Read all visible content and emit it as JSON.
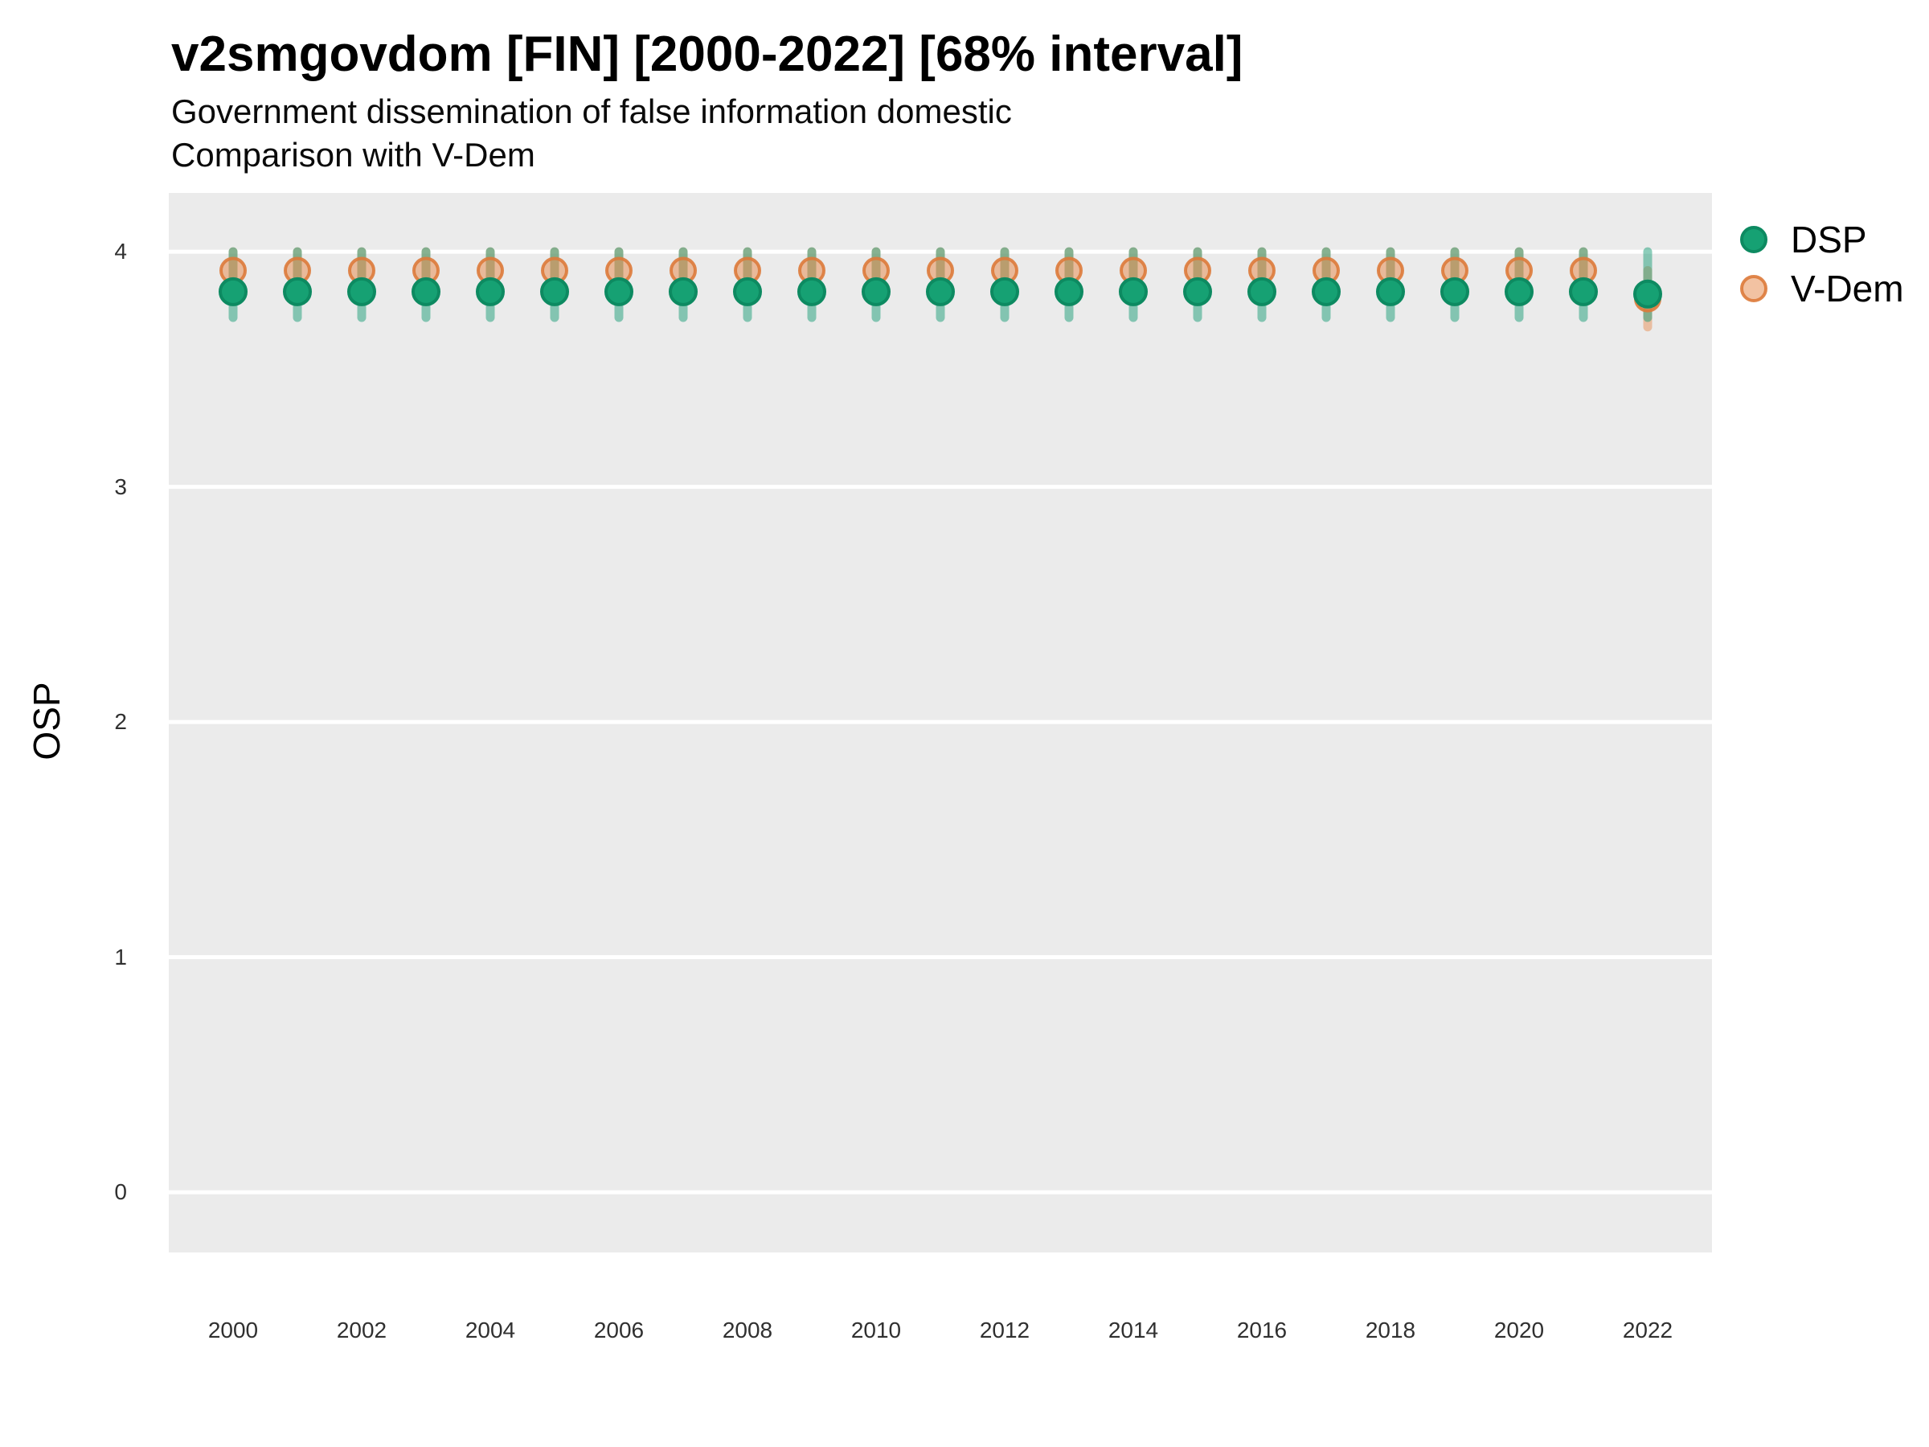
{
  "header": {
    "title": "v2smgovdom [FIN] [2000-2022] [68% interval]",
    "subtitle_line1": "Government dissemination of false information domestic",
    "subtitle_line2": "Comparison with V-Dem"
  },
  "legend": {
    "items": [
      {
        "label": "DSP",
        "marker_fill": "#16a173",
        "marker_stroke": "#0d8a61"
      },
      {
        "label": "V-Dem",
        "marker_fill": "rgba(232,144,86,0.55)",
        "marker_stroke": "rgba(221,122,58,0.9)"
      }
    ]
  },
  "chart_data": {
    "type": "scatter",
    "title": "v2smgovdom [FIN] [2000-2022] [68% interval]",
    "subtitle": "Government dissemination of false information domestic / Comparison with V-Dem",
    "xlabel": "",
    "ylabel": "OSP",
    "x": [
      2000,
      2001,
      2002,
      2003,
      2004,
      2005,
      2006,
      2007,
      2008,
      2009,
      2010,
      2011,
      2012,
      2013,
      2014,
      2015,
      2016,
      2017,
      2018,
      2019,
      2020,
      2021,
      2022
    ],
    "series": [
      {
        "name": "V-Dem",
        "point_fill": "rgba(232,144,86,0.55)",
        "point_stroke": "rgba(221,122,58,0.9)",
        "bar_color": "rgba(232,144,86,0.5)",
        "point_radius": 15,
        "values": [
          3.92,
          3.92,
          3.92,
          3.92,
          3.92,
          3.92,
          3.92,
          3.92,
          3.92,
          3.92,
          3.92,
          3.92,
          3.92,
          3.92,
          3.92,
          3.92,
          3.92,
          3.92,
          3.92,
          3.92,
          3.92,
          3.92,
          3.8
        ],
        "lower": [
          3.82,
          3.82,
          3.82,
          3.82,
          3.82,
          3.82,
          3.82,
          3.82,
          3.82,
          3.82,
          3.82,
          3.82,
          3.82,
          3.82,
          3.82,
          3.82,
          3.82,
          3.82,
          3.82,
          3.82,
          3.82,
          3.82,
          3.68
        ],
        "upper": [
          4.0,
          4.0,
          4.0,
          4.0,
          4.0,
          4.0,
          4.0,
          4.0,
          4.0,
          4.0,
          4.0,
          4.0,
          4.0,
          4.0,
          4.0,
          4.0,
          4.0,
          4.0,
          4.0,
          4.0,
          4.0,
          4.0,
          3.92
        ]
      },
      {
        "name": "DSP",
        "point_fill": "#16a173",
        "point_stroke": "#0d8a61",
        "bar_color": "rgba(27,158,119,0.5)",
        "point_radius": 16,
        "values": [
          3.83,
          3.83,
          3.83,
          3.83,
          3.83,
          3.83,
          3.83,
          3.83,
          3.83,
          3.83,
          3.83,
          3.83,
          3.83,
          3.83,
          3.83,
          3.83,
          3.83,
          3.83,
          3.83,
          3.83,
          3.83,
          3.83,
          3.82
        ],
        "lower": [
          3.72,
          3.72,
          3.72,
          3.72,
          3.72,
          3.72,
          3.72,
          3.72,
          3.72,
          3.72,
          3.72,
          3.72,
          3.72,
          3.72,
          3.72,
          3.72,
          3.72,
          3.72,
          3.72,
          3.72,
          3.72,
          3.72,
          3.72
        ],
        "upper": [
          4.0,
          4.0,
          4.0,
          4.0,
          4.0,
          4.0,
          4.0,
          4.0,
          4.0,
          4.0,
          4.0,
          4.0,
          4.0,
          4.0,
          4.0,
          4.0,
          4.0,
          4.0,
          4.0,
          4.0,
          4.0,
          4.0,
          4.0
        ]
      }
    ],
    "xticks": [
      2000,
      2002,
      2004,
      2006,
      2008,
      2010,
      2012,
      2014,
      2016,
      2018,
      2020,
      2022
    ],
    "yticks": [
      0,
      1,
      2,
      3,
      4
    ],
    "xlim": [
      1999.0,
      2023.0
    ],
    "ylim": [
      -0.256,
      4.25
    ],
    "interval_level": "68%",
    "grid": "horizontal-major-only",
    "panel_background": "#ebebeb",
    "gridline_color": "#ffffff",
    "legend_position": "right"
  }
}
